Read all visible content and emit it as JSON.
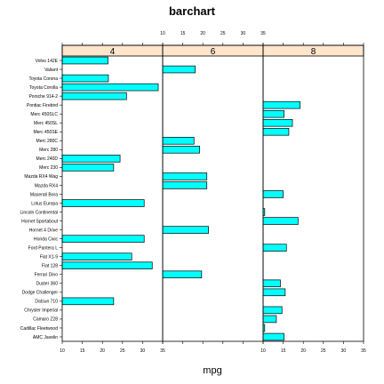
{
  "chart_data": {
    "type": "bar",
    "title": "barchart",
    "xlabel": "mpg",
    "ylabel": "",
    "xlim": [
      10,
      35
    ],
    "x_ticks": [
      10,
      15,
      20,
      25,
      30,
      35
    ],
    "panel_by": "cyl",
    "panels": [
      "4",
      "6",
      "8"
    ],
    "categories": [
      "AMC Javelin",
      "Cadillac Fleetwood",
      "Camaro Z28",
      "Chrysler Imperial",
      "Datsun 710",
      "Dodge Challenger",
      "Duster 360",
      "Ferrari Dino",
      "Fiat 128",
      "Fiat X1-9",
      "Ford Pantera L",
      "Honda Civic",
      "Hornet 4 Drive",
      "Hornet Sportabout",
      "Lincoln Continental",
      "Lotus Europa",
      "Maserati Bora",
      "Mazda RX4",
      "Mazda RX4 Wag",
      "Merc 230",
      "Merc 240D",
      "Merc 280",
      "Merc 280C",
      "Merc 450SE",
      "Merc 450SL",
      "Merc 450SLC",
      "Pontiac Firebird",
      "Porsche 914-2",
      "Toyota Corolla",
      "Toyota Corona",
      "Valiant",
      "Volvo 142E"
    ],
    "series": [
      {
        "name": "4",
        "values": {
          "Datsun 710": 22.8,
          "Fiat 128": 32.4,
          "Fiat X1-9": 27.3,
          "Honda Civic": 30.4,
          "Lotus Europa": 30.4,
          "Merc 230": 22.8,
          "Merc 240D": 24.4,
          "Porsche 914-2": 26.0,
          "Toyota Corolla": 33.9,
          "Toyota Corona": 21.5,
          "Volvo 142E": 21.4
        }
      },
      {
        "name": "6",
        "values": {
          "Ferrari Dino": 19.7,
          "Hornet 4 Drive": 21.4,
          "Mazda RX4": 21.0,
          "Mazda RX4 Wag": 21.0,
          "Merc 280": 19.2,
          "Merc 280C": 17.8,
          "Valiant": 18.1
        }
      },
      {
        "name": "8",
        "values": {
          "AMC Javelin": 15.2,
          "Cadillac Fleetwood": 10.4,
          "Camaro Z28": 13.3,
          "Chrysler Imperial": 14.7,
          "Dodge Challenger": 15.5,
          "Duster 360": 14.3,
          "Ford Pantera L": 15.8,
          "Hornet Sportabout": 18.7,
          "Lincoln Continental": 10.4,
          "Maserati Bora": 15.0,
          "Merc 450SE": 16.4,
          "Merc 450SL": 17.3,
          "Merc 450SLC": 15.2,
          "Pontiac Firebird": 19.2
        }
      }
    ],
    "colors": {
      "bar_fill": "#00ffff",
      "strip_fill": "#ffe5cc",
      "axis": "#000000"
    },
    "grid": false,
    "legend": "none"
  }
}
